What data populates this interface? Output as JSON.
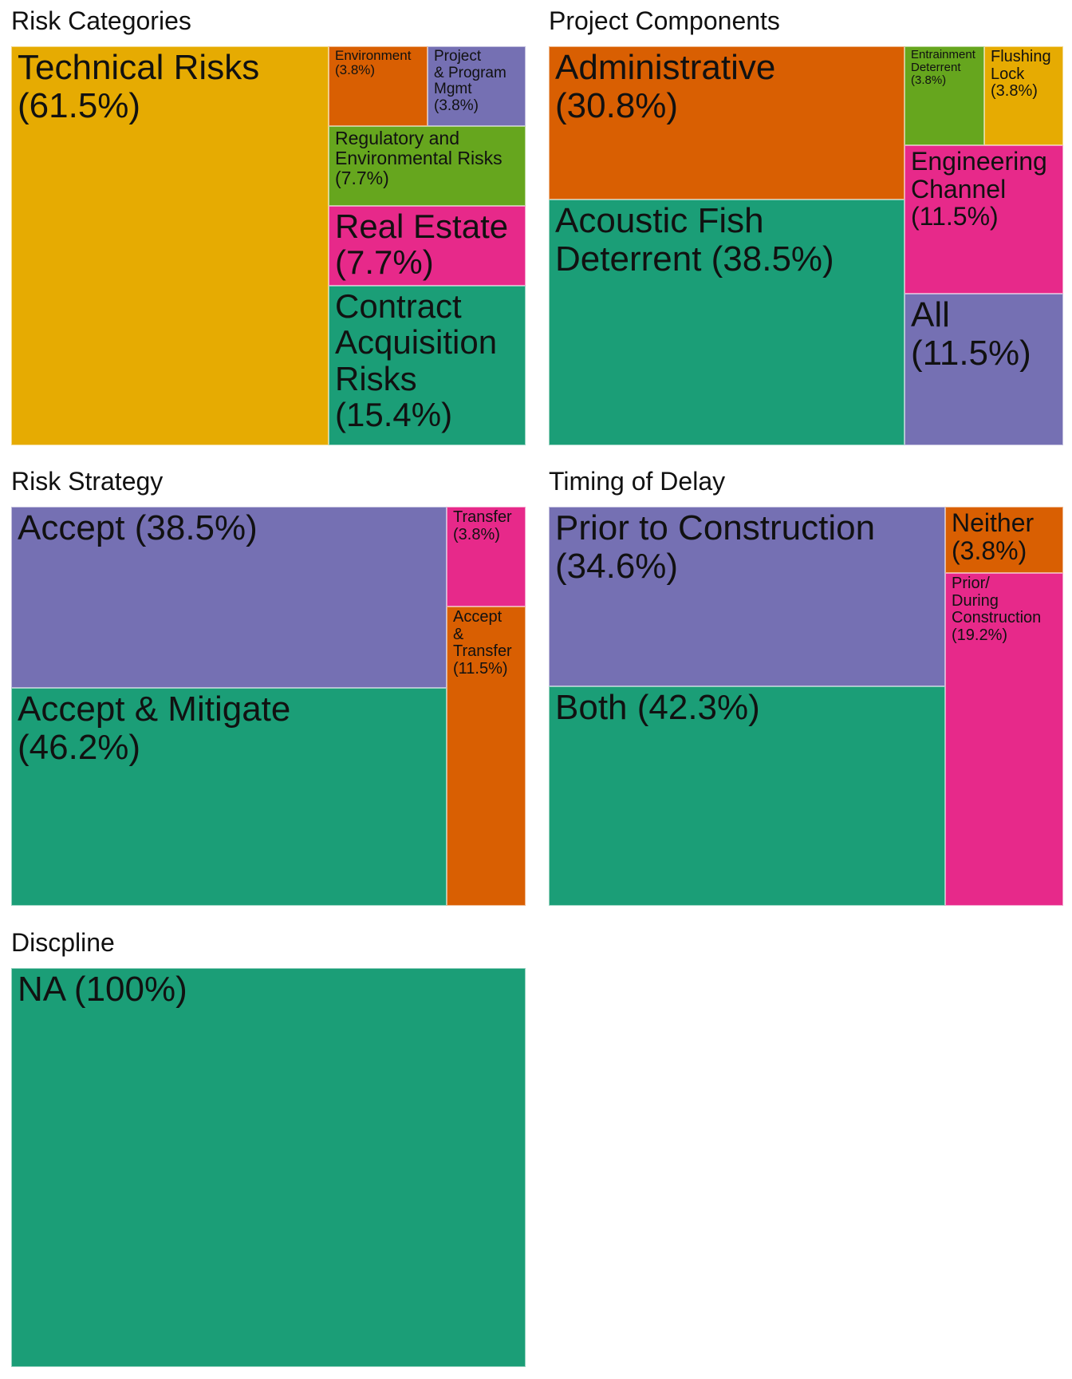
{
  "colors": {
    "yellow": "#E6AB02",
    "orange": "#D95F02",
    "purple": "#7570B3",
    "green": "#66A61E",
    "pink": "#E7298A",
    "teal": "#1B9E77"
  },
  "chart_data": [
    {
      "type": "treemap",
      "title": "Risk Categories",
      "nodes": [
        {
          "label": "Technical Risks\n(61.5%)",
          "name": "Technical Risks",
          "percent": 61.5,
          "color": "#E6AB02"
        },
        {
          "label": "Environment\n(3.8%)",
          "name": "Environment",
          "percent": 3.8,
          "color": "#D95F02"
        },
        {
          "label": "Project\n& Program\nMgmt\n(3.8%)",
          "name": "Project & Program Mgmt",
          "percent": 3.8,
          "color": "#7570B3"
        },
        {
          "label": "Regulatory and\nEnvironmental Risks\n(7.7%)",
          "name": "Regulatory and Environmental Risks",
          "percent": 7.7,
          "color": "#66A61E"
        },
        {
          "label": "Real Estate\n(7.7%)",
          "name": "Real Estate",
          "percent": 7.7,
          "color": "#E7298A"
        },
        {
          "label": "Contract\nAcquisition\nRisks\n(15.4%)",
          "name": "Contract Acquisition Risks",
          "percent": 15.4,
          "color": "#1B9E77"
        }
      ]
    },
    {
      "type": "treemap",
      "title": "Project Components",
      "nodes": [
        {
          "label": "Administrative\n(30.8%)",
          "name": "Administrative",
          "percent": 30.8,
          "color": "#D95F02"
        },
        {
          "label": "Acoustic Fish\nDeterrent (38.5%)",
          "name": "Acoustic Fish Deterrent",
          "percent": 38.5,
          "color": "#1B9E77"
        },
        {
          "label": "Entrainment\nDeterrent\n(3.8%)",
          "name": "Entrainment Deterrent",
          "percent": 3.8,
          "color": "#66A61E"
        },
        {
          "label": "Flushing\nLock\n(3.8%)",
          "name": "Flushing Lock",
          "percent": 3.8,
          "color": "#E6AB02"
        },
        {
          "label": "Engineering\nChannel\n(11.5%)",
          "name": "Engineering Channel",
          "percent": 11.5,
          "color": "#E7298A"
        },
        {
          "label": "All\n(11.5%)",
          "name": "All",
          "percent": 11.5,
          "color": "#7570B3"
        }
      ]
    },
    {
      "type": "treemap",
      "title": "Risk Strategy",
      "nodes": [
        {
          "label": "Accept (38.5%)",
          "name": "Accept",
          "percent": 38.5,
          "color": "#7570B3"
        },
        {
          "label": "Accept & Mitigate\n(46.2%)",
          "name": "Accept & Mitigate",
          "percent": 46.2,
          "color": "#1B9E77"
        },
        {
          "label": "Transfer\n(3.8%)",
          "name": "Transfer",
          "percent": 3.8,
          "color": "#E7298A"
        },
        {
          "label": "Accept\n&\nTransfer\n(11.5%)",
          "name": "Accept & Transfer",
          "percent": 11.5,
          "color": "#D95F02"
        }
      ]
    },
    {
      "type": "treemap",
      "title": "Timing of Delay",
      "nodes": [
        {
          "label": "Prior to Construction\n(34.6%)",
          "name": "Prior to Construction",
          "percent": 34.6,
          "color": "#7570B3"
        },
        {
          "label": "Both (42.3%)",
          "name": "Both",
          "percent": 42.3,
          "color": "#1B9E77"
        },
        {
          "label": "Neither\n(3.8%)",
          "name": "Neither",
          "percent": 3.8,
          "color": "#D95F02"
        },
        {
          "label": "Prior/\nDuring\nConstruction\n(19.2%)",
          "name": "Prior/During Construction",
          "percent": 19.2,
          "color": "#E7298A"
        }
      ]
    },
    {
      "type": "treemap",
      "title": "Discpline",
      "nodes": [
        {
          "label": "NA (100%)",
          "name": "NA",
          "percent": 100,
          "color": "#1B9E77"
        }
      ]
    }
  ]
}
